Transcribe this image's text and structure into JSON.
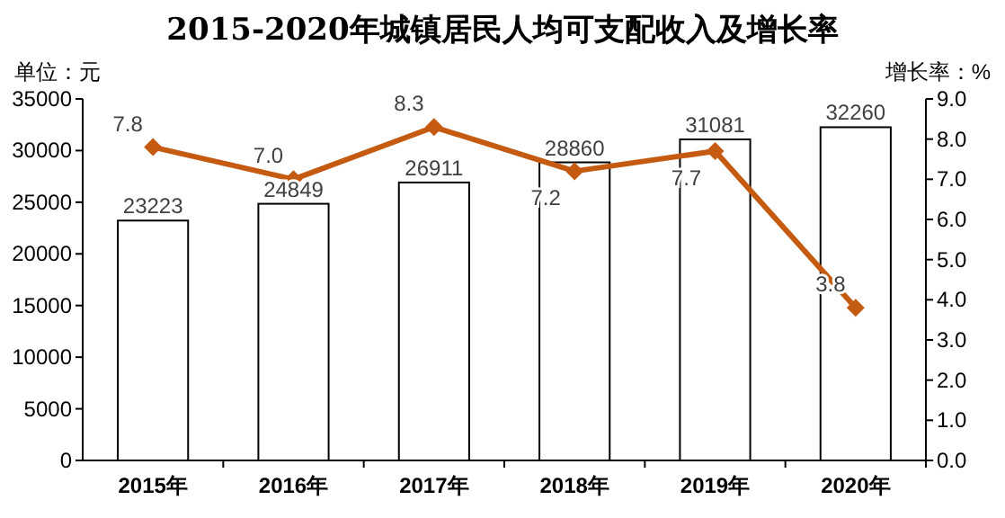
{
  "chart_data": {
    "type": "bar",
    "title": "2015-2020年城镇居民人均可支配收入及增长率",
    "ylabel": "单位：元",
    "y2label": "增长率：%",
    "categories": [
      "2015年",
      "2016年",
      "2017年",
      "2018年",
      "2019年",
      "2020年"
    ],
    "series": [
      {
        "color": "#ffffff",
        "values": [
          23223,
          24849,
          26911,
          28860,
          31081,
          32260
        ],
        "value_labels": [
          "23223",
          "24849",
          "26911",
          "28860",
          "31081",
          "32260"
        ]
      },
      {
        "type": "line",
        "axis": "y2",
        "color": "#c55a11",
        "marker": "diamond",
        "values": [
          7.8,
          7.0,
          8.3,
          7.2,
          7.7,
          3.8
        ],
        "value_labels": [
          "7.8",
          "7.0",
          "8.3",
          "7.2",
          "7.7",
          "3.8"
        ]
      }
    ],
    "ylim": [
      0,
      35000
    ],
    "yticks": [
      0,
      5000,
      10000,
      15000,
      20000,
      25000,
      30000,
      35000
    ],
    "y2lim": [
      0,
      9
    ],
    "y2ticks": [
      {
        "value": 0,
        "label": "0.0"
      },
      {
        "value": 1,
        "label": "1.0"
      },
      {
        "value": 2,
        "label": "2.0"
      },
      {
        "value": 3,
        "label": "3.0"
      },
      {
        "value": 4,
        "label": "4.0"
      },
      {
        "value": 5,
        "label": "5.0"
      },
      {
        "value": 6,
        "label": "6.0"
      },
      {
        "value": 7,
        "label": "7.0"
      },
      {
        "value": 8,
        "label": "8.0"
      },
      {
        "value": 9,
        "label": "9.0"
      }
    ]
  }
}
